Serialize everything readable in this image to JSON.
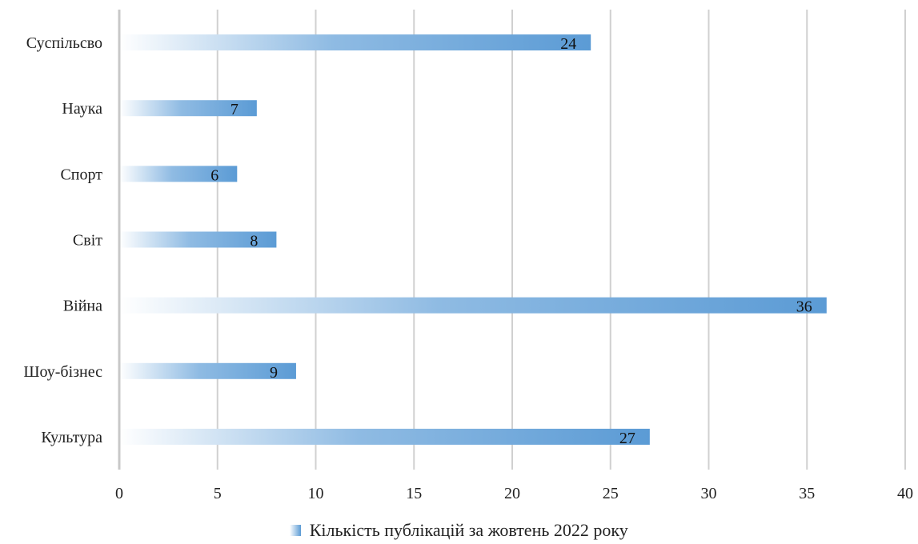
{
  "chart_data": {
    "type": "bar",
    "orientation": "horizontal",
    "categories": [
      "Суспільсво",
      "Наука",
      "Спорт",
      "Світ",
      "Війна",
      "Шоу-бізнес",
      "Культура"
    ],
    "series": [
      {
        "name": "Кількість публікацій за жовтень 2022 року",
        "values": [
          24,
          7,
          6,
          8,
          36,
          9,
          27
        ]
      }
    ],
    "xlim": [
      0,
      40
    ],
    "xticks": [
      0,
      5,
      10,
      15,
      20,
      25,
      30,
      35,
      40
    ],
    "grid": true,
    "data_labels": true,
    "legend_position": "bottom",
    "bar_color": "#5b9bd5",
    "grid_color": "#d0d0d0"
  }
}
